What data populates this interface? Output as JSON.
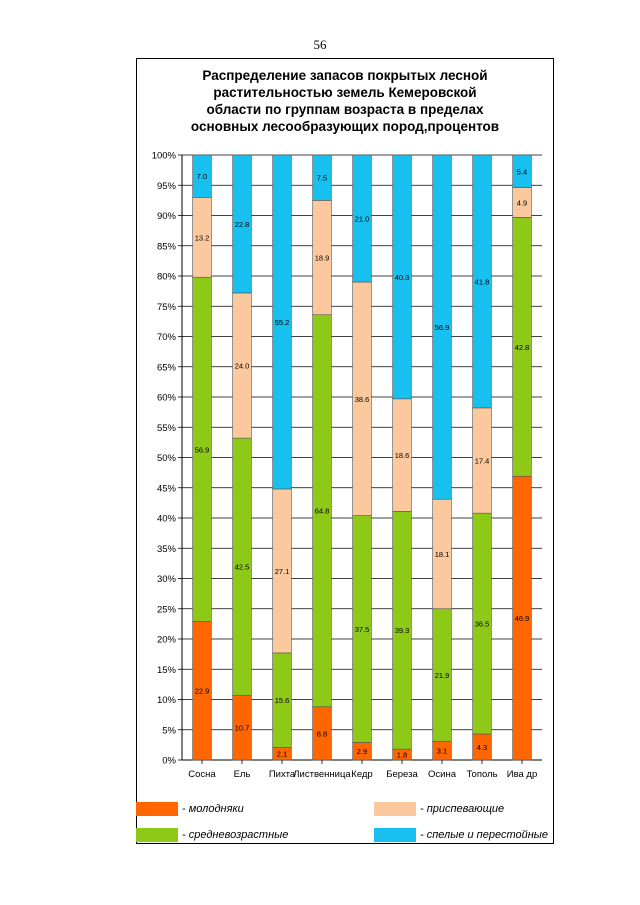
{
  "page_number": "56",
  "chart_data": {
    "type": "bar",
    "stacked": true,
    "title_lines": [
      "Распределение запасов покрытых лесной",
      "растительностью земель Кемеровской",
      "области по группам возраста в пределах",
      "основных лесообразующих пород,процентов"
    ],
    "categories": [
      "Сосна",
      "Ель",
      "Пихта",
      "Лиственница",
      "Кедр",
      "Береза",
      "Осина",
      "Тополь",
      "Ива др"
    ],
    "ylim": [
      0,
      100
    ],
    "y_ticks": [
      "0%",
      "5%",
      "10%",
      "15%",
      "20%",
      "25%",
      "30%",
      "35%",
      "40%",
      "45%",
      "50%",
      "55%",
      "60%",
      "65%",
      "70%",
      "75%",
      "80%",
      "85%",
      "90%",
      "95%",
      "100%"
    ],
    "grid": true,
    "series": [
      {
        "name": "- молодняки",
        "color": "#ff6600",
        "values": [
          22.9,
          10.7,
          2.1,
          8.8,
          2.9,
          1.8,
          3.1,
          4.3,
          46.9
        ],
        "labels": [
          "22.9",
          "10.7",
          "2.1",
          "8.8",
          "2.9",
          "1.8",
          "3.1",
          "4.3",
          "46.9"
        ]
      },
      {
        "name": "- средневозрастные",
        "color": "#8fc918",
        "values": [
          56.9,
          42.5,
          15.6,
          64.8,
          37.5,
          39.3,
          21.9,
          36.5,
          42.8
        ],
        "labels": [
          "56.9",
          "42.5",
          "15.6",
          "64.8",
          "37.5",
          "39.3",
          "21.9",
          "36.5",
          "42.8"
        ]
      },
      {
        "name": "- приспевающие",
        "color": "#fbc99d",
        "values": [
          13.2,
          24.0,
          27.1,
          18.9,
          38.6,
          18.6,
          18.1,
          17.4,
          4.9
        ],
        "labels": [
          "13.2",
          "24.0",
          "27.1",
          "18.9",
          "38.6",
          "18.6",
          "18.1",
          "17.4",
          "4.9"
        ]
      },
      {
        "name": "- спелые и перестойные",
        "color": "#18c0f0",
        "values": [
          7.0,
          22.8,
          55.2,
          7.5,
          21.0,
          40.3,
          56.9,
          41.8,
          5.4
        ],
        "labels": [
          "7.0",
          "22.8",
          "55.2",
          "7.5",
          "21.0",
          "40.3",
          "56.9",
          "41.8",
          "5.4"
        ]
      }
    ],
    "legend_position": "bottom"
  }
}
